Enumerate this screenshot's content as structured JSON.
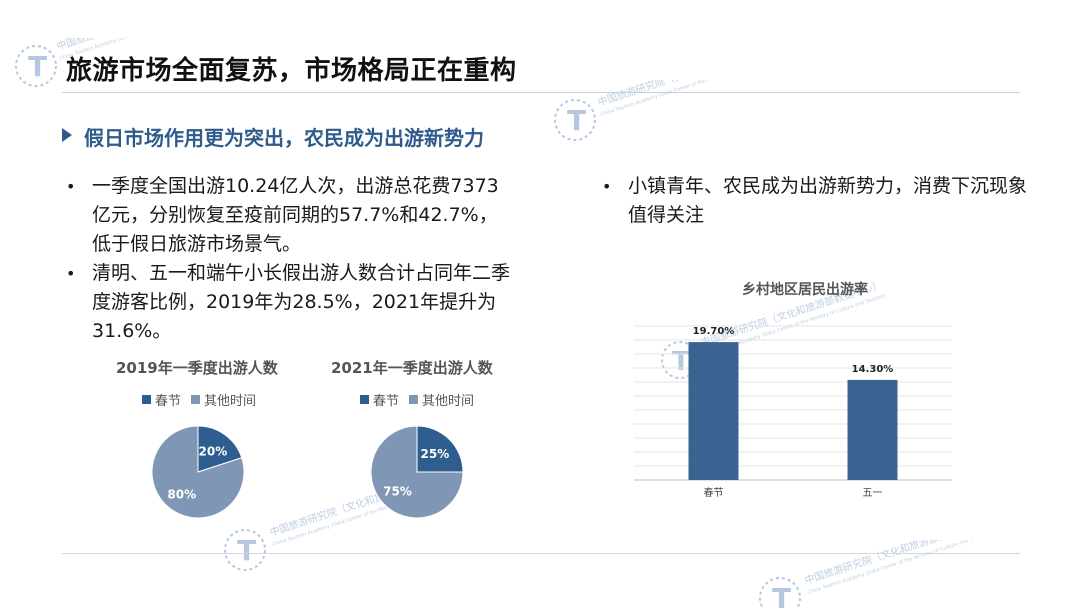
{
  "title": "旅游市场全面复苏，市场格局正在重构",
  "section_heading": "假日市场作用更为突出，农民成为出游新势力",
  "bullets": {
    "left_1": "一季度全国出游10.24亿人次，出游总花费7373亿元，分别恢复至疫前同期的57.7%和42.7%，低于假日旅游市场景气。",
    "left_2": "清明、五一和端午小长假出游人数合计占同年二季度游客比例，2019年为28.5%，2021年提升为31.6%。",
    "right_1": "小镇青年、农民成为出游新势力，消费下沉现象值得关注"
  },
  "bullet_symbol": "•",
  "watermark": {
    "org_cn": "中国旅游研究院（文化和旅游部数据中心）",
    "org_en": "China Tourism Academy (Data Center of the Ministry of Culture and Tourism)"
  },
  "colors": {
    "accent": "#2f5b8c",
    "spring": "#2e5d8f",
    "other": "#7f97b4",
    "bar": "#3b6392"
  },
  "chart_data": [
    {
      "type": "pie",
      "title": "2019年一季度出游人数",
      "legend": [
        "春节",
        "其他时间"
      ],
      "values": [
        20,
        80
      ],
      "labels": [
        "20%",
        "80%"
      ]
    },
    {
      "type": "pie",
      "title": "2021年一季度出游人数",
      "legend": [
        "春节",
        "其他时间"
      ],
      "values": [
        25,
        75
      ],
      "labels": [
        "25%",
        "75%"
      ]
    },
    {
      "type": "bar",
      "title": "乡村地区居民出游率",
      "categories": [
        "春节",
        "五一"
      ],
      "values": [
        19.7,
        14.3
      ],
      "labels": [
        "19.70%",
        "14.30%"
      ],
      "ylim": [
        0,
        22
      ],
      "grid": true
    }
  ]
}
